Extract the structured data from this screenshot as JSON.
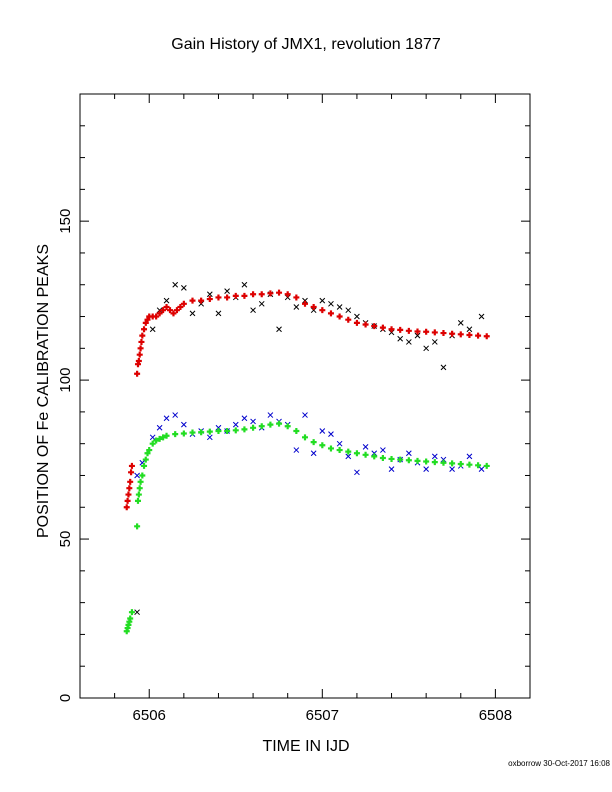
{
  "chart_data": {
    "type": "scatter",
    "title": "Gain History of JMX1, revolution 1877",
    "xlabel": "TIME IN IJD",
    "ylabel": "POSITION OF Fe CALIBRATION PEAKS",
    "xlim": [
      6505.6,
      6508.2
    ],
    "ylim": [
      0,
      190
    ],
    "xticks": [
      6506,
      6507,
      6508
    ],
    "yticks": [
      0,
      50,
      100,
      150
    ],
    "grid": false,
    "series": [
      {
        "marker": "x",
        "color": "#000000",
        "x": [
          6505.93,
          6506.02,
          6506.06,
          6506.1,
          6506.15,
          6506.2,
          6506.25,
          6506.3,
          6506.35,
          6506.4,
          6506.45,
          6506.5,
          6506.55,
          6506.6,
          6506.65,
          6506.7,
          6506.75,
          6506.8,
          6506.85,
          6506.9,
          6506.95,
          6507.0,
          6507.05,
          6507.1,
          6507.15,
          6507.2,
          6507.25,
          6507.3,
          6507.35,
          6507.4,
          6507.45,
          6507.5,
          6507.55,
          6507.6,
          6507.65,
          6507.7,
          6507.75,
          6507.8,
          6507.85,
          6507.92
        ],
        "y": [
          27,
          116,
          122,
          125,
          130,
          129,
          121,
          124,
          127,
          121,
          128,
          126,
          130,
          122,
          124,
          127,
          116,
          126,
          123,
          125,
          122,
          125,
          124,
          123,
          122,
          120,
          118,
          117,
          116,
          115,
          113,
          112,
          114,
          110,
          112,
          104,
          114,
          118,
          116,
          120
        ]
      },
      {
        "marker": "x",
        "color": "#0000cc",
        "x": [
          6505.93,
          6505.96,
          6506.02,
          6506.06,
          6506.1,
          6506.15,
          6506.2,
          6506.25,
          6506.3,
          6506.35,
          6506.4,
          6506.45,
          6506.5,
          6506.55,
          6506.6,
          6506.65,
          6506.7,
          6506.75,
          6506.8,
          6506.85,
          6506.9,
          6506.95,
          6507.0,
          6507.05,
          6507.1,
          6507.15,
          6507.2,
          6507.25,
          6507.3,
          6507.35,
          6507.4,
          6507.45,
          6507.5,
          6507.55,
          6507.6,
          6507.65,
          6507.7,
          6507.75,
          6507.8,
          6507.85,
          6507.92
        ],
        "y": [
          70,
          74,
          82,
          85,
          88,
          89,
          86,
          83,
          84,
          82,
          85,
          84,
          86,
          88,
          87,
          85,
          89,
          87,
          86,
          78,
          89,
          77,
          84,
          83,
          80,
          76,
          71,
          79,
          77,
          78,
          72,
          75,
          77,
          74,
          72,
          76,
          75,
          72,
          73,
          76,
          72
        ]
      },
      {
        "marker": "+",
        "color": "#dd0000",
        "x": [
          6505.87,
          6505.875,
          6505.88,
          6505.885,
          6505.89,
          6505.895,
          6505.9,
          6505.93,
          6505.935,
          6505.94,
          6505.945,
          6505.95,
          6505.955,
          6505.96,
          6505.97,
          6505.98,
          6505.99,
          6506.0,
          6506.02,
          6506.04,
          6506.06,
          6506.08,
          6506.1,
          6506.12,
          6506.14,
          6506.16,
          6506.18,
          6506.2,
          6506.25,
          6506.3,
          6506.35,
          6506.4,
          6506.45,
          6506.5,
          6506.55,
          6506.6,
          6506.65,
          6506.7,
          6506.75,
          6506.8,
          6506.85,
          6506.9,
          6506.95,
          6507.0,
          6507.05,
          6507.1,
          6507.15,
          6507.2,
          6507.25,
          6507.3,
          6507.35,
          6507.4,
          6507.45,
          6507.5,
          6507.55,
          6507.6,
          6507.65,
          6507.7,
          6507.75,
          6507.8,
          6507.85,
          6507.9,
          6507.95
        ],
        "y": [
          60,
          62,
          64,
          66,
          68,
          71,
          73,
          102,
          105,
          106,
          108,
          110,
          112,
          114,
          116,
          118,
          119,
          120,
          120,
          120,
          121,
          122,
          123,
          122,
          121,
          122,
          123,
          124,
          125,
          125,
          125.5,
          126,
          126,
          126.5,
          126.5,
          127,
          127,
          127.3,
          127.5,
          127,
          126,
          124,
          123,
          122,
          121,
          120,
          119,
          118,
          117.5,
          117,
          116.5,
          116,
          115.8,
          115.5,
          115.3,
          115.2,
          115,
          114.8,
          114.6,
          114.4,
          114.2,
          114,
          113.8
        ]
      },
      {
        "marker": "+",
        "color": "#22dd22",
        "x": [
          6505.87,
          6505.875,
          6505.88,
          6505.885,
          6505.89,
          6505.9,
          6505.93,
          6505.935,
          6505.94,
          6505.945,
          6505.95,
          6505.96,
          6505.97,
          6505.98,
          6505.99,
          6506.0,
          6506.02,
          6506.04,
          6506.06,
          6506.08,
          6506.1,
          6506.15,
          6506.2,
          6506.25,
          6506.3,
          6506.35,
          6506.4,
          6506.45,
          6506.5,
          6506.55,
          6506.6,
          6506.65,
          6506.7,
          6506.75,
          6506.8,
          6506.85,
          6506.9,
          6506.95,
          6507.0,
          6507.05,
          6507.1,
          6507.15,
          6507.2,
          6507.25,
          6507.3,
          6507.35,
          6507.4,
          6507.45,
          6507.5,
          6507.55,
          6507.6,
          6507.65,
          6507.7,
          6507.75,
          6507.8,
          6507.85,
          6507.9,
          6507.95
        ],
        "y": [
          21,
          22,
          23,
          24,
          25,
          27,
          54,
          62,
          64,
          66,
          68,
          70,
          73,
          75,
          77,
          78,
          80,
          81,
          81.5,
          82,
          82.5,
          83,
          83.2,
          83.5,
          83.6,
          83.8,
          84,
          84,
          84.2,
          84.5,
          85,
          85.5,
          86,
          86.3,
          85.5,
          84,
          82,
          80.5,
          79.5,
          78.5,
          78,
          77.5,
          77,
          76.5,
          76,
          75.5,
          75.2,
          75,
          74.8,
          74.6,
          74.4,
          74.2,
          74,
          73.8,
          73.6,
          73.4,
          73.2,
          73
        ]
      }
    ]
  },
  "footer": "oxborrow 30-Oct-2017 16:08"
}
